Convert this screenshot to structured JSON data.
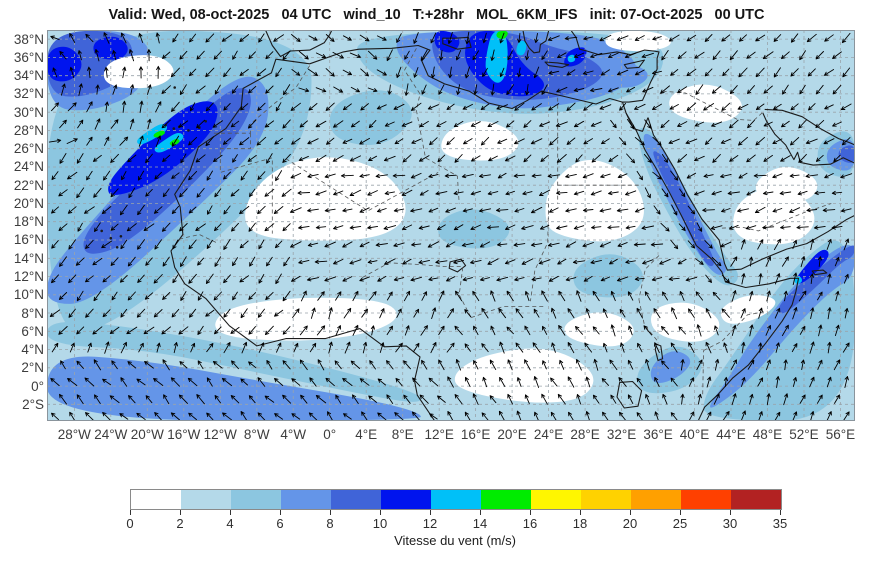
{
  "title": "Valid: Wed, 08-oct-2025   04 UTC   wind_10   T:+28hr   MOL_6KM_IFS   init: 07-Oct-2025   00 UTC",
  "map": {
    "lat_tick_labels": [
      "38°N",
      "36°N",
      "34°N",
      "32°N",
      "30°N",
      "28°N",
      "26°N",
      "24°N",
      "22°N",
      "20°N",
      "18°N",
      "16°N",
      "14°N",
      "12°N",
      "10°N",
      "8°N",
      "6°N",
      "4°N",
      "2°N",
      "0°",
      "2°S"
    ],
    "lon_tick_labels": [
      "28°W",
      "24°W",
      "20°W",
      "16°W",
      "12°W",
      "8°W",
      "4°W",
      "0°",
      "4°E",
      "8°E",
      "12°E",
      "16°E",
      "20°E",
      "24°E",
      "28°E",
      "32°E",
      "36°E",
      "40°E",
      "44°E",
      "48°E",
      "52°E",
      "56°E"
    ]
  },
  "colorbar": {
    "label": "Vitesse du vent (m/s)",
    "tick_labels": [
      "0",
      "2",
      "4",
      "6",
      "8",
      "10",
      "12",
      "14",
      "16",
      "18",
      "20",
      "25",
      "30",
      "35"
    ],
    "colors": [
      "#ffffff",
      "#b4d9e9",
      "#8cc6e0",
      "#6495e8",
      "#4064d8",
      "#0014ee",
      "#00c0f8",
      "#00ec00",
      "#fff600",
      "#ffd200",
      "#ffa000",
      "#ff4000",
      "#b22222"
    ]
  },
  "chart_data": {
    "type": "heatmap",
    "title": "Valid: Wed, 08-oct-2025 04 UTC  wind_10  T:+28hr  MOL_6KM_IFS  init: 07-Oct-2025 00 UTC",
    "variable": "wind_10",
    "valid_time": "Wed, 08-oct-2025 04 UTC",
    "forecast_lead": "T:+28hr",
    "model": "MOL_6KM_IFS",
    "init_time": "07-Oct-2025 00 UTC",
    "colorbar_label": "Vitesse du vent (m/s)",
    "colorbar_values": [
      0,
      2,
      4,
      6,
      8,
      10,
      12,
      14,
      16,
      18,
      20,
      25,
      30,
      35
    ],
    "colorbar_colors": [
      "#ffffff",
      "#b4d9e9",
      "#8cc6e0",
      "#6495e8",
      "#4064d8",
      "#0014ee",
      "#00c0f8",
      "#00ec00",
      "#fff600",
      "#ffd200",
      "#ffa000",
      "#ff4000",
      "#b22222"
    ],
    "lat_tick_values": [
      38,
      36,
      34,
      32,
      30,
      28,
      26,
      24,
      22,
      20,
      18,
      16,
      14,
      12,
      10,
      8,
      6,
      4,
      2,
      0,
      -2
    ],
    "lon_tick_values": [
      -28,
      -24,
      -20,
      -16,
      -12,
      -8,
      -4,
      0,
      4,
      8,
      12,
      16,
      20,
      24,
      28,
      32,
      36,
      40,
      44,
      48,
      52,
      56
    ],
    "lat_range_deg": [
      -3.8,
      39.0
    ],
    "lon_range_deg": [
      -31.0,
      57.6
    ],
    "overlay": "10 m wind vectors shown as black arrows on every grid point",
    "grid": "dashed graticule every 2° latitude / 4° longitude",
    "features": [
      {
        "region": "East Atlantic SW of Canary Islands (28-14°W, 20-32°N)",
        "wind_ms": "8-16",
        "detail": "strong NE trade-wind band; embedded cyan/green cores 12-16 m/s near 18°W 27°N"
      },
      {
        "region": "NW corner of domain (31-20°W, 32-39°N)",
        "wind_ms": "8-12",
        "detail": "cyclonically curved flow, dark-blue patches at top edge"
      },
      {
        "region": "Central Mediterranean / Gulf of Sidra (12-30°E, 31-39°N)",
        "wind_ms": "8-16",
        "detail": "northerly surge; cyan-green core 12-16 m/s near 19°E at the top edge"
      },
      {
        "region": "Somali coast and Gulf of Aden (44-57°E, 0-16°N)",
        "wind_ms": "6-14",
        "detail": "low-level jet directed NNE, 10-14 m/s core offshore"
      },
      {
        "region": "Red Sea axis (34-43°E, 12-28°N)",
        "wind_ms": "6-10",
        "detail": "flow channelled SSE along the sea"
      },
      {
        "region": "South Atlantic trade belt (31°W-10°E, south of 3°N)",
        "wind_ms": "6-8",
        "detail": "south-easterlies recurving into the West African monsoon"
      },
      {
        "region": "Persian Gulf (54-57°E, 24-28°N)",
        "wind_ms": "6-10"
      },
      {
        "region": "Sahara, Sahel and Arabian interior",
        "wind_ms": "0-6",
        "detail": "weak easterlies; white patches below 2 m/s"
      }
    ]
  }
}
